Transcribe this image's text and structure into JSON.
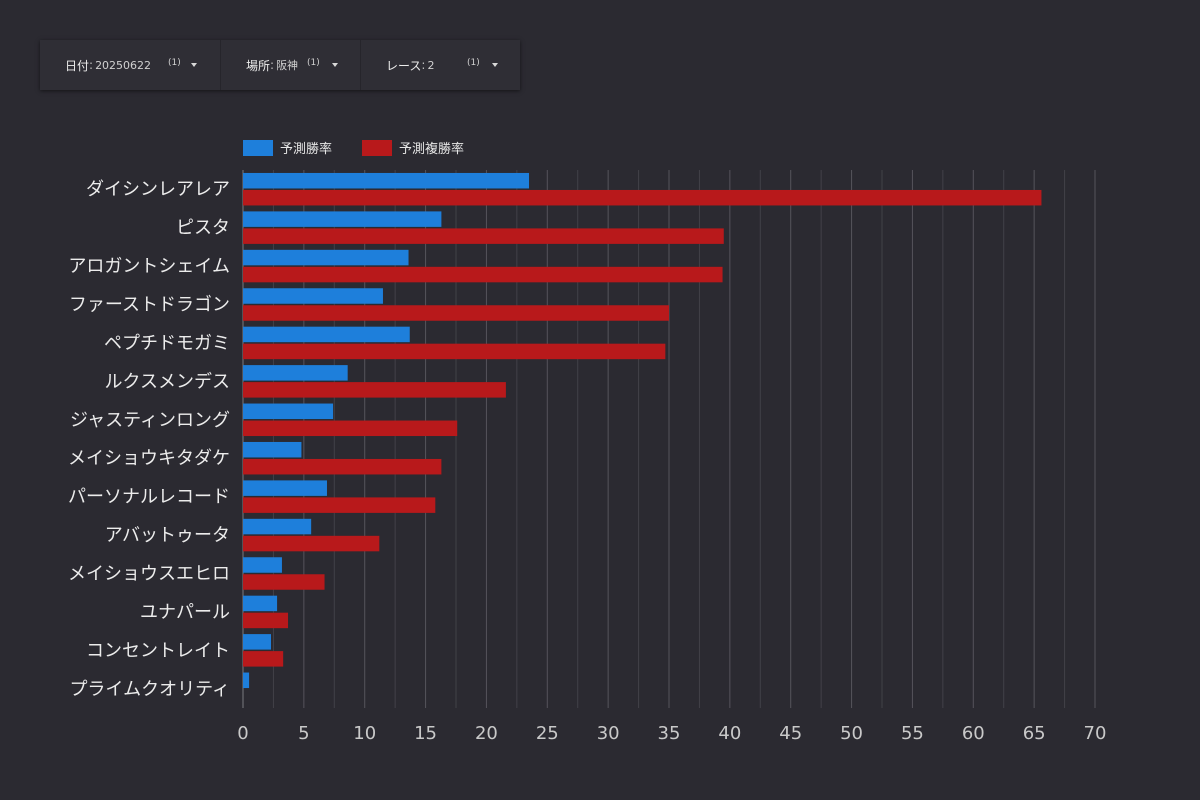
{
  "filters": [
    {
      "key": "日付",
      "value": "20250622",
      "count": "(1)"
    },
    {
      "key": "場所",
      "value": "阪神",
      "count": "(1)"
    },
    {
      "key": "レース",
      "value": "2",
      "count": "(1)"
    }
  ],
  "chart_data": {
    "type": "bar",
    "orientation": "horizontal",
    "categories": [
      "ダイシンレアレア",
      "ピスタ",
      "アロガントシェイム",
      "ファーストドラゴン",
      "ペプチドモガミ",
      "ルクスメンデス",
      "ジャスティンロング",
      "メイショウキタダケ",
      "パーソナルレコード",
      "アバットゥータ",
      "メイショウスエヒロ",
      "ユナパール",
      "コンセントレイト",
      "プライムクオリティ"
    ],
    "series": [
      {
        "name": "予測勝率",
        "color": "#1e7fdb",
        "values": [
          23.5,
          16.3,
          13.6,
          11.5,
          13.7,
          8.6,
          7.4,
          4.8,
          6.9,
          5.6,
          3.2,
          2.8,
          2.3,
          0.5
        ]
      },
      {
        "name": "予測複勝率",
        "color": "#b8191b",
        "values": [
          65.6,
          39.5,
          39.4,
          35.0,
          34.7,
          21.6,
          17.6,
          16.3,
          15.8,
          11.2,
          6.7,
          3.7,
          3.3,
          0.0
        ]
      }
    ],
    "xlim": [
      0,
      70
    ],
    "xticks": [
      0,
      5,
      10,
      15,
      20,
      25,
      30,
      35,
      40,
      45,
      50,
      55,
      60,
      65,
      70
    ],
    "grid": true,
    "legend_position": "top-left"
  }
}
